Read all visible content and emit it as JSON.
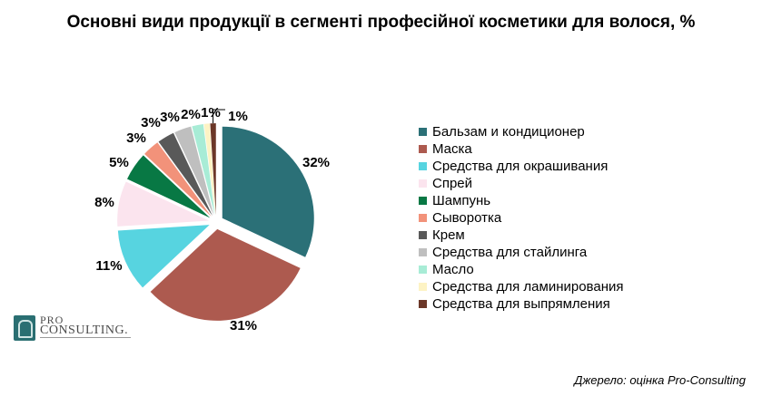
{
  "chart_data": {
    "type": "pie",
    "title": "Основні види продукції в сегменті професійної косметики для волося, %",
    "slices": [
      {
        "label": "Бальзам и кондиционер",
        "value": 32,
        "color": "#2b7077"
      },
      {
        "label": "Маска",
        "value": 31,
        "color": "#ad5a4f"
      },
      {
        "label": "Средства для окрашивания",
        "value": 11,
        "color": "#57d4e0"
      },
      {
        "label": "Спрей",
        "value": 8,
        "color": "#fbe4ee"
      },
      {
        "label": "Шампунь",
        "value": 5,
        "color": "#087844"
      },
      {
        "label": "Сыворотка",
        "value": 3,
        "color": "#f2927a"
      },
      {
        "label": "Крем",
        "value": 3,
        "color": "#595959"
      },
      {
        "label": "Средства для стайлинга",
        "value": 3,
        "color": "#bfbfbf"
      },
      {
        "label": "Масло",
        "value": 2,
        "color": "#a8ecd6"
      },
      {
        "label": "Средства для ламинирования",
        "value": 1,
        "color": "#fdf3c4"
      },
      {
        "label": "Средства для выпрямления",
        "value": 1,
        "color": "#6b3728"
      }
    ],
    "value_suffix": "%",
    "exploded": true,
    "legend_position": "right"
  },
  "logo": {
    "line1": "PRO",
    "line2": "CONSULTING."
  },
  "source_note": "Джерело: оцінка Pro-Consulting"
}
